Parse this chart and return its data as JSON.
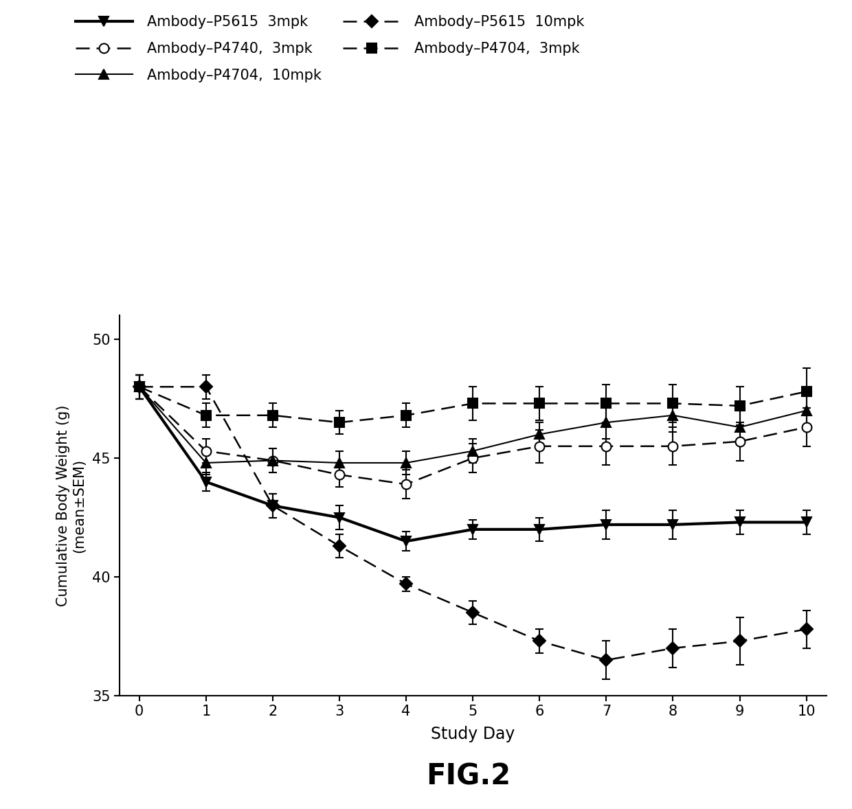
{
  "xlabel": "Study Day",
  "ylabel": "Cumulative Body Weight (g)\n(mean±SEM)",
  "xlim": [
    -0.3,
    10.3
  ],
  "ylim": [
    35,
    51
  ],
  "yticks": [
    35,
    40,
    45,
    50
  ],
  "xticks": [
    0,
    1,
    2,
    3,
    4,
    5,
    6,
    7,
    8,
    9,
    10
  ],
  "days": [
    0,
    1,
    2,
    3,
    4,
    5,
    6,
    7,
    8,
    9,
    10
  ],
  "series": {
    "P5615_3mpk": {
      "label": "Ambody–P5615  3mpk",
      "y": [
        48.0,
        44.0,
        43.0,
        42.5,
        41.5,
        42.0,
        42.0,
        42.2,
        42.2,
        42.3,
        42.3
      ],
      "yerr": [
        0.5,
        0.4,
        0.5,
        0.5,
        0.4,
        0.4,
        0.5,
        0.6,
        0.6,
        0.5,
        0.5
      ],
      "linestyle": "solid",
      "linewidth": 3.0,
      "marker": "v",
      "markersize": 10,
      "color": "black",
      "fillstyle": "full",
      "dashes": null
    },
    "P4704_10mpk": {
      "label": "Ambody–P4704,  10mpk",
      "y": [
        48.0,
        44.8,
        44.9,
        44.8,
        44.8,
        45.3,
        46.0,
        46.5,
        46.8,
        46.3,
        47.0
      ],
      "yerr": [
        0.5,
        0.5,
        0.5,
        0.5,
        0.5,
        0.5,
        0.5,
        0.7,
        0.7,
        0.7,
        0.7
      ],
      "linestyle": "solid",
      "linewidth": 1.5,
      "marker": "^",
      "markersize": 10,
      "color": "black",
      "fillstyle": "full",
      "dashes": null
    },
    "P4704_3mpk": {
      "label": "Ambody–P4704,  3mpk",
      "y": [
        48.0,
        46.8,
        46.8,
        46.5,
        46.8,
        47.3,
        47.3,
        47.3,
        47.3,
        47.2,
        47.8
      ],
      "yerr": [
        0.5,
        0.5,
        0.5,
        0.5,
        0.5,
        0.7,
        0.7,
        0.8,
        0.8,
        0.8,
        1.0
      ],
      "linestyle": "dashed",
      "linewidth": 1.8,
      "marker": "s",
      "markersize": 10,
      "color": "black",
      "fillstyle": "full",
      "dashes": [
        8,
        4
      ]
    },
    "P4740_3mpk": {
      "label": "Ambody–P4740,  3mpk",
      "y": [
        48.0,
        45.3,
        44.9,
        44.3,
        43.9,
        45.0,
        45.5,
        45.5,
        45.5,
        45.7,
        46.3
      ],
      "yerr": [
        0.5,
        0.5,
        0.5,
        0.5,
        0.6,
        0.6,
        0.7,
        0.8,
        0.8,
        0.8,
        0.8
      ],
      "linestyle": "dashed",
      "linewidth": 1.8,
      "marker": "o",
      "markersize": 10,
      "color": "black",
      "fillstyle": "none",
      "dashes": [
        8,
        4
      ]
    },
    "P5615_10mpk": {
      "label": "Ambody–P5615  10mpk",
      "y": [
        48.0,
        48.0,
        43.0,
        41.3,
        39.7,
        38.5,
        37.3,
        36.5,
        37.0,
        37.3,
        37.8
      ],
      "yerr": [
        0.5,
        0.5,
        0.5,
        0.5,
        0.3,
        0.5,
        0.5,
        0.8,
        0.8,
        1.0,
        0.8
      ],
      "linestyle": "dashed",
      "linewidth": 1.8,
      "marker": "D",
      "markersize": 9,
      "color": "black",
      "fillstyle": "full",
      "dashes": [
        8,
        4
      ]
    }
  },
  "background_color": "#ffffff",
  "fig_caption": "FIG.2",
  "caption_fontsize": 30
}
